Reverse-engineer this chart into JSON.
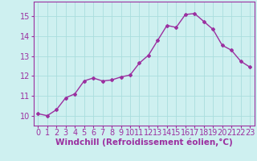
{
  "x": [
    0,
    1,
    2,
    3,
    4,
    5,
    6,
    7,
    8,
    9,
    10,
    11,
    12,
    13,
    14,
    15,
    16,
    17,
    18,
    19,
    20,
    21,
    22,
    23
  ],
  "y": [
    10.1,
    10.0,
    10.3,
    10.9,
    11.1,
    11.75,
    11.9,
    11.75,
    11.8,
    11.95,
    12.05,
    12.65,
    13.05,
    13.8,
    14.55,
    14.45,
    15.1,
    15.15,
    14.75,
    14.35,
    13.55,
    13.3,
    12.75,
    12.45
  ],
  "line_color": "#9b30a0",
  "marker": "D",
  "marker_size": 2,
  "line_width": 1.0,
  "background_color": "#cef0f0",
  "grid_color": "#aadddd",
  "xlabel": "Windchill (Refroidissement éolien,°C)",
  "xlabel_fontsize": 7.5,
  "tick_fontsize": 7,
  "ylim": [
    9.5,
    15.75
  ],
  "xlim": [
    -0.5,
    23.5
  ],
  "yticks": [
    10,
    11,
    12,
    13,
    14,
    15
  ],
  "xticks": [
    0,
    1,
    2,
    3,
    4,
    5,
    6,
    7,
    8,
    9,
    10,
    11,
    12,
    13,
    14,
    15,
    16,
    17,
    18,
    19,
    20,
    21,
    22,
    23
  ]
}
